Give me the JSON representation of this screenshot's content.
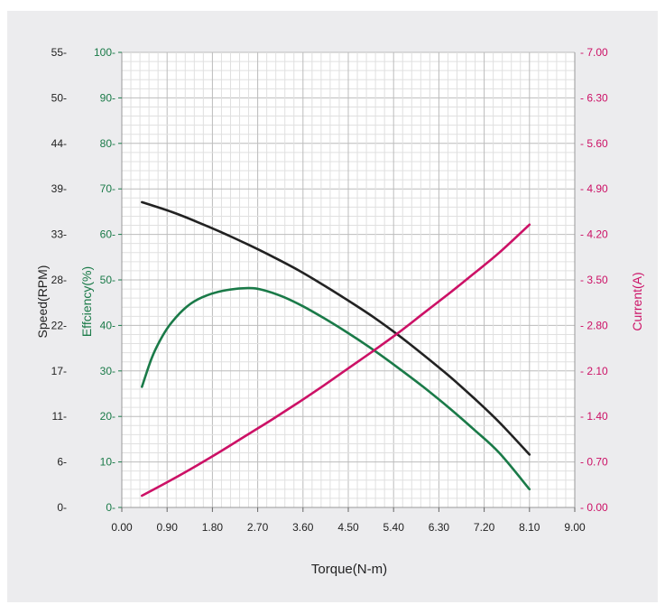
{
  "chart_data": {
    "type": "line",
    "xlabel": "Torque(N-m)",
    "x_ticks": [
      "0.00",
      "0.90",
      "1.80",
      "2.70",
      "3.60",
      "4.50",
      "5.40",
      "6.30",
      "7.20",
      "8.10",
      "9.00"
    ],
    "xlim": [
      0,
      9
    ],
    "grid": true,
    "axes": {
      "speed": {
        "label": "Speed(RPM)",
        "color": "#222222",
        "ticks": [
          "0",
          "6",
          "11",
          "17",
          "22",
          "28",
          "33",
          "39",
          "44",
          "50",
          "55"
        ],
        "ylim": [
          0,
          55
        ]
      },
      "efficiency": {
        "label": "Effciency(%)",
        "color": "#1a7a48",
        "ticks": [
          "0",
          "10",
          "20",
          "30",
          "40",
          "50",
          "60",
          "70",
          "80",
          "90",
          "100"
        ],
        "ylim": [
          0,
          100
        ]
      },
      "current": {
        "label": "Current(A)",
        "color": "#cc1166",
        "ticks": [
          "0.00",
          "0.70",
          "1.40",
          "2.10",
          "2.80",
          "3.50",
          "4.20",
          "4.90",
          "5.60",
          "6.30",
          "7.00"
        ],
        "ylim": [
          0,
          7
        ]
      }
    },
    "series": [
      {
        "axis": "speed",
        "color": "#222222",
        "x": [
          0.4,
          1.0,
          1.5,
          2.0,
          2.5,
          3.0,
          3.5,
          4.0,
          4.5,
          5.0,
          5.5,
          6.0,
          6.5,
          7.0,
          7.5,
          8.1
        ],
        "y": [
          36.9,
          35.7,
          34.5,
          33.2,
          31.8,
          30.3,
          28.7,
          26.9,
          25.0,
          23.0,
          20.8,
          18.4,
          15.9,
          13.2,
          10.3,
          6.4
        ]
      },
      {
        "axis": "efficiency",
        "color": "#1a7a48",
        "x": [
          0.4,
          0.6,
          0.8,
          1.0,
          1.3,
          1.6,
          2.0,
          2.5,
          2.8,
          3.2,
          3.6,
          4.0,
          4.5,
          5.0,
          5.5,
          6.0,
          6.5,
          7.0,
          7.5,
          8.1
        ],
        "y": [
          26.5,
          33.0,
          37.5,
          40.8,
          44.2,
          46.2,
          47.6,
          48.2,
          47.8,
          46.3,
          44.2,
          41.7,
          38.3,
          34.6,
          30.6,
          26.4,
          21.9,
          17.1,
          12.0,
          4.0
        ]
      },
      {
        "axis": "current",
        "color": "#cc1166",
        "x": [
          0.4,
          1.0,
          1.5,
          2.0,
          2.5,
          3.0,
          3.5,
          4.0,
          4.5,
          5.0,
          5.5,
          6.0,
          6.5,
          7.0,
          7.5,
          8.1
        ],
        "y": [
          0.18,
          0.43,
          0.65,
          0.88,
          1.12,
          1.36,
          1.61,
          1.87,
          2.14,
          2.41,
          2.69,
          2.99,
          3.29,
          3.6,
          3.92,
          4.35
        ]
      }
    ]
  }
}
